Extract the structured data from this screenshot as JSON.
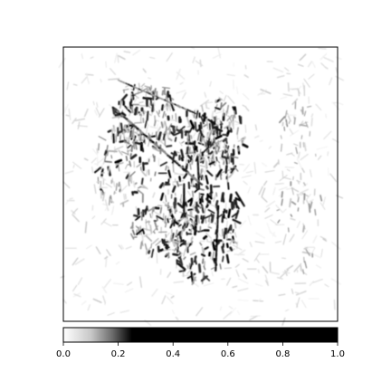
{
  "chart_data": {
    "type": "heatmap",
    "title": "",
    "xlabel": "",
    "ylabel": "",
    "axes_ticks_visible": false,
    "grid": false,
    "colormap": "gray_r",
    "colorbar": {
      "orientation": "horizontal",
      "placement": "bottom",
      "range": [
        0.0,
        1.0
      ],
      "ticks": [
        0.0,
        0.2,
        0.4,
        0.6,
        0.8,
        1.0
      ],
      "tick_labels": [
        "0.0",
        "0.2",
        "0.4",
        "0.6",
        "0.8",
        "1.0"
      ],
      "gradient_stops": [
        {
          "value": 0.0,
          "color": "#ffffff"
        },
        {
          "value": 0.1,
          "color": "#c8c8c8"
        },
        {
          "value": 0.18,
          "color": "#6a6a6a"
        },
        {
          "value": 0.25,
          "color": "#000000"
        },
        {
          "value": 1.0,
          "color": "#000000"
        }
      ]
    }
  }
}
